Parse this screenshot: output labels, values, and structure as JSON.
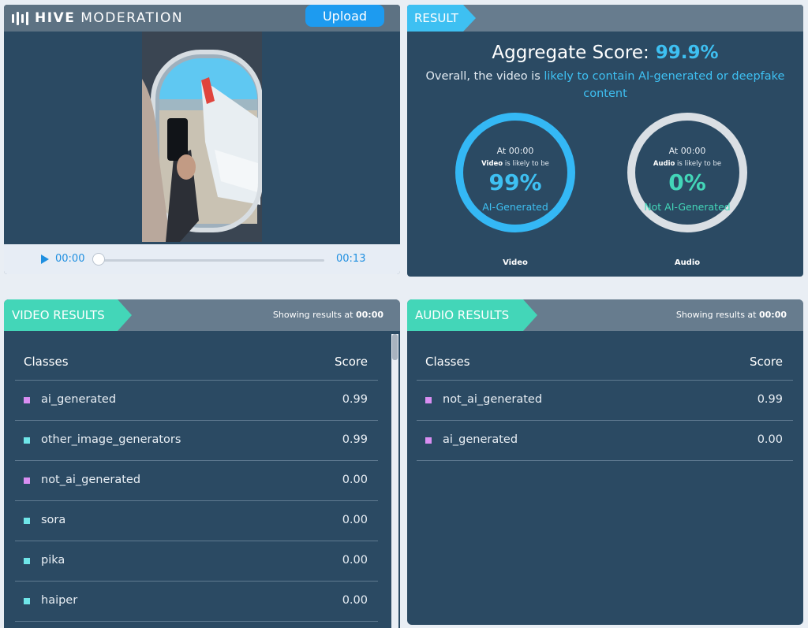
{
  "app": {
    "logo_bold": "HIVE",
    "logo_rest": " MODERATION",
    "upload_label": "Upload"
  },
  "player": {
    "current_time": "00:00",
    "duration": "00:13",
    "progress": 0
  },
  "result": {
    "tag": "RESULT",
    "aggregate_label": "Aggregate Score:",
    "aggregate_value": "99.9%",
    "overall_prefix": "Overall, the video is ",
    "overall_highlight": "likely to contain AI-generated or deepfake content",
    "video": {
      "at": "At 00:00",
      "subject": "Video",
      "likely": " is likely to be",
      "pct": "99%",
      "verdict": "AI-Generated",
      "caption": "Video"
    },
    "audio": {
      "at": "At 00:00",
      "subject": "Audio",
      "likely": " is likely to be",
      "pct": "0%",
      "verdict": "Not AI-Generated",
      "caption": "Audio"
    }
  },
  "video_results": {
    "tag": "VIDEO RESULTS",
    "showing_prefix": "Showing results at ",
    "showing_time": "00:00",
    "col_classes": "Classes",
    "col_score": "Score",
    "rows": [
      {
        "name": "ai_generated",
        "score": "0.99",
        "color": "#d98ef2"
      },
      {
        "name": "other_image_generators",
        "score": "0.99",
        "color": "#6fe6e9"
      },
      {
        "name": "not_ai_generated",
        "score": "0.00",
        "color": "#d98ef2"
      },
      {
        "name": "sora",
        "score": "0.00",
        "color": "#6fe6e9"
      },
      {
        "name": "pika",
        "score": "0.00",
        "color": "#6fe6e9"
      },
      {
        "name": "haiper",
        "score": "0.00",
        "color": "#6fe6e9"
      }
    ]
  },
  "audio_results": {
    "tag": "AUDIO RESULTS",
    "showing_prefix": "Showing results at ",
    "showing_time": "00:00",
    "col_classes": "Classes",
    "col_score": "Score",
    "rows": [
      {
        "name": "not_ai_generated",
        "score": "0.99",
        "color": "#d98ef2"
      },
      {
        "name": "ai_generated",
        "score": "0.00",
        "color": "#d98ef2"
      }
    ]
  },
  "colors": {
    "panel": "#2b4a63",
    "accent_blue": "#3ec0f2",
    "accent_green": "#43d6b8"
  }
}
